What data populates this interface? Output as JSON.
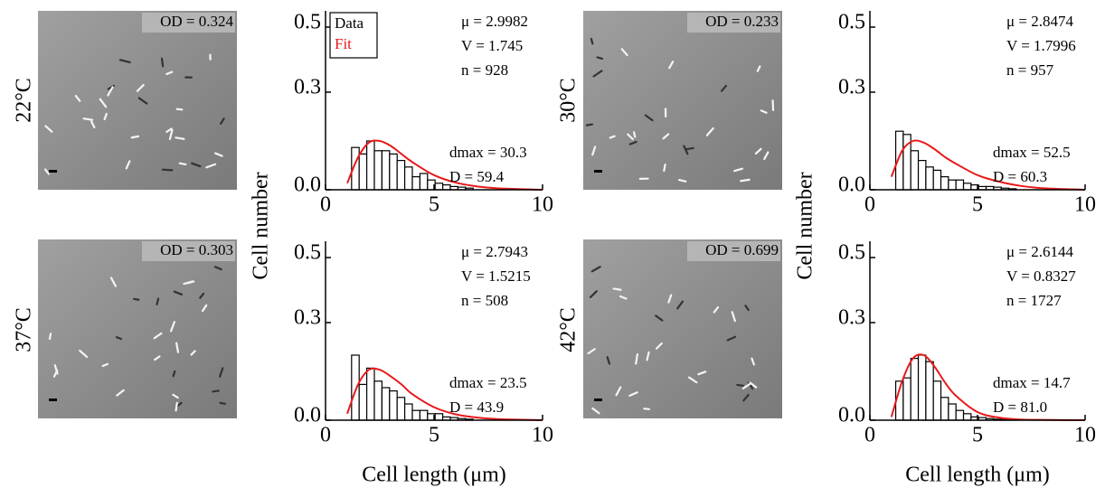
{
  "chart_data": [
    {
      "type": "histogram",
      "panel_label": "22°C",
      "od": "OD = 0.324",
      "y_label": "Cell number",
      "annotations": [
        "μ = 2.9982",
        "V = 1.745",
        "n = 928",
        "dmax = 30.3",
        "D = 59.4"
      ],
      "bins": [
        1.2,
        1.55,
        1.9,
        2.25,
        2.6,
        2.95,
        3.3,
        3.65,
        4.0,
        4.35,
        4.7,
        5.05,
        5.4,
        5.75,
        6.1,
        6.45,
        6.8
      ],
      "series": [
        {
          "name": "Data",
          "color": "#000000",
          "values": [
            0.13,
            0.11,
            0.15,
            0.12,
            0.12,
            0.11,
            0.09,
            0.07,
            0.04,
            0.05,
            0.03,
            0.02,
            0.015,
            0.01,
            0.008,
            0.005
          ]
        },
        {
          "name": "Fit",
          "color": "#e8191b",
          "x": [
            1,
            1.5,
            2,
            2.5,
            3,
            3.5,
            4,
            5,
            6,
            7,
            8,
            10
          ],
          "values": [
            0.02,
            0.1,
            0.145,
            0.15,
            0.135,
            0.11,
            0.085,
            0.045,
            0.022,
            0.01,
            0.004,
            0
          ]
        }
      ],
      "xlim": [
        0,
        10
      ],
      "xticks": [
        0,
        5,
        10
      ],
      "ylim": [
        0,
        0.55
      ],
      "yticks": [
        {
          "value": 0,
          "label": "0.0"
        },
        0.3,
        0.5
      ],
      "legend": "upper left"
    },
    {
      "type": "histogram",
      "panel_label": "30°C",
      "od": "OD = 0.233",
      "y_label": "Cell number",
      "annotations": [
        "μ = 2.8474",
        "V = 1.7996",
        "n = 957",
        "dmax = 52.5",
        "D = 60.3"
      ],
      "bins": [
        1.2,
        1.55,
        1.9,
        2.25,
        2.6,
        2.95,
        3.3,
        3.65,
        4.0,
        4.35,
        4.7,
        5.05,
        5.4,
        5.75,
        6.1,
        6.45,
        6.8
      ],
      "series": [
        {
          "color": "#000000",
          "values": [
            0.18,
            0.17,
            0.12,
            0.09,
            0.07,
            0.06,
            0.04,
            0.03,
            0.03,
            0.02,
            0.015,
            0.01,
            0.01,
            0.008,
            0.005,
            0.003
          ]
        },
        {
          "color": "#e8191b",
          "x": [
            1,
            1.5,
            2,
            2.5,
            3,
            3.5,
            4,
            5,
            6,
            7,
            8,
            10
          ],
          "values": [
            0.04,
            0.12,
            0.15,
            0.145,
            0.125,
            0.1,
            0.08,
            0.045,
            0.025,
            0.012,
            0.005,
            0
          ]
        }
      ],
      "xlim": [
        0,
        10
      ],
      "xticks": [
        0,
        5,
        10
      ],
      "ylim": [
        0,
        0.55
      ],
      "yticks": [
        {
          "value": 0,
          "label": "0.0"
        },
        0.3,
        0.5
      ]
    },
    {
      "type": "histogram",
      "panel_label": "37°C",
      "od": "OD = 0.303",
      "x_label": "Cell length (μm)",
      "annotations": [
        "μ = 2.7943",
        "V = 1.5215",
        "n = 508",
        "dmax = 23.5",
        "D = 43.9"
      ],
      "bins": [
        1.2,
        1.55,
        1.9,
        2.25,
        2.6,
        2.95,
        3.3,
        3.65,
        4.0,
        4.35,
        4.7,
        5.05,
        5.4,
        5.75,
        6.1,
        6.45,
        6.8
      ],
      "series": [
        {
          "color": "#000000",
          "values": [
            0.2,
            0.11,
            0.16,
            0.12,
            0.1,
            0.09,
            0.07,
            0.05,
            0.03,
            0.03,
            0.02,
            0.02,
            0.01,
            0.008,
            0.005,
            0.003
          ]
        },
        {
          "color": "#e8191b",
          "x": [
            1,
            1.5,
            2,
            2.5,
            3,
            3.5,
            4,
            5,
            6,
            7,
            8,
            10
          ],
          "values": [
            0.02,
            0.11,
            0.155,
            0.155,
            0.135,
            0.11,
            0.08,
            0.04,
            0.018,
            0.008,
            0.003,
            0
          ]
        }
      ],
      "xlim": [
        0,
        10
      ],
      "xticks": [
        0,
        5,
        10
      ],
      "ylim": [
        0,
        0.55
      ],
      "yticks": [
        {
          "value": 0,
          "label": "0.0"
        },
        0.3,
        0.5
      ]
    },
    {
      "type": "histogram",
      "panel_label": "42°C",
      "od": "OD = 0.699",
      "x_label": "Cell length (μm)",
      "annotations": [
        "μ = 2.6144",
        "V = 0.8327",
        "n = 1727",
        "dmax = 14.7",
        "D = 81.0"
      ],
      "bins": [
        1.2,
        1.55,
        1.9,
        2.25,
        2.6,
        2.95,
        3.3,
        3.65,
        4.0,
        4.35,
        4.7,
        5.05,
        5.4,
        5.75,
        6.1,
        6.45,
        6.8
      ],
      "series": [
        {
          "color": "#000000",
          "values": [
            0.12,
            0.13,
            0.19,
            0.2,
            0.18,
            0.12,
            0.07,
            0.05,
            0.03,
            0.02,
            0.01,
            0.008,
            0.005,
            0.003,
            0.002,
            0.001
          ]
        },
        {
          "color": "#e8191b",
          "x": [
            1,
            1.5,
            2,
            2.5,
            3,
            3.5,
            4,
            5,
            6,
            7,
            8,
            10
          ],
          "values": [
            0.01,
            0.12,
            0.19,
            0.2,
            0.165,
            0.115,
            0.075,
            0.025,
            0.008,
            0.002,
            0.001,
            0
          ]
        }
      ],
      "xlim": [
        0,
        10
      ],
      "xticks": [
        0,
        5,
        10
      ],
      "ylim": [
        0,
        0.55
      ],
      "yticks": [
        {
          "value": 0,
          "label": "0.0"
        },
        0.3,
        0.5
      ]
    }
  ]
}
